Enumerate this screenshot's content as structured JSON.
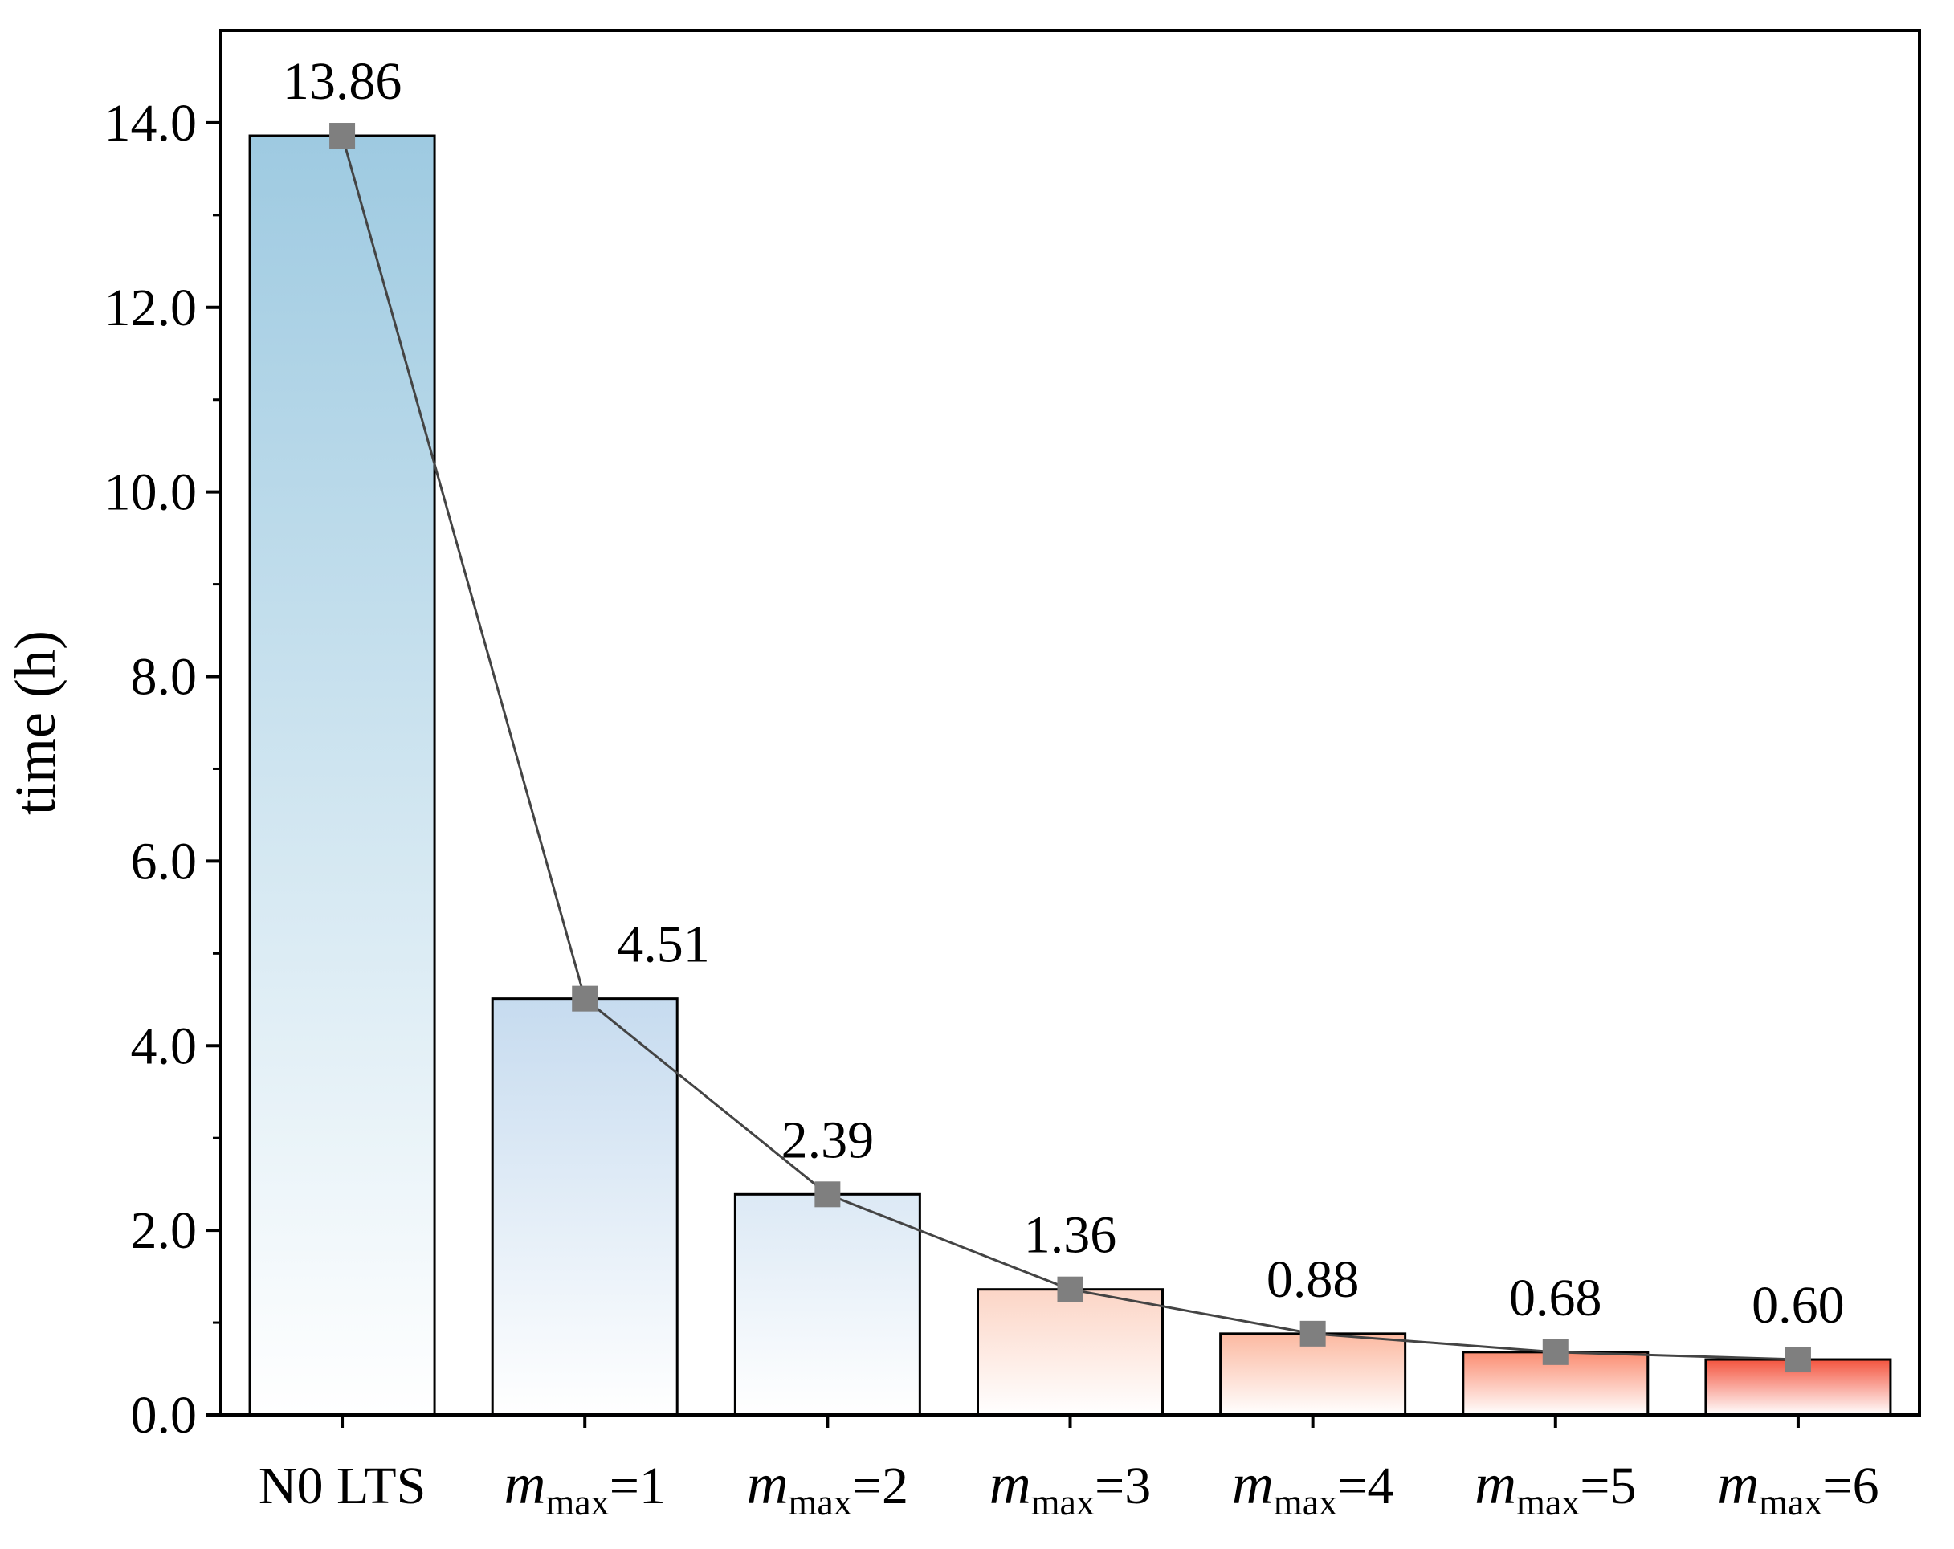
{
  "chart_data": {
    "type": "bar",
    "categories": [
      {
        "label": "N0 LTS"
      },
      {
        "base": "m",
        "sub": "max",
        "suffix": "=1"
      },
      {
        "base": "m",
        "sub": "max",
        "suffix": "=2"
      },
      {
        "base": "m",
        "sub": "max",
        "suffix": "=3"
      },
      {
        "base": "m",
        "sub": "max",
        "suffix": "=4"
      },
      {
        "base": "m",
        "sub": "max",
        "suffix": "=5"
      },
      {
        "base": "m",
        "sub": "max",
        "suffix": "=6"
      }
    ],
    "values": [
      13.86,
      4.51,
      2.39,
      1.36,
      0.88,
      0.68,
      0.6
    ],
    "data_labels": [
      "13.86",
      "4.51",
      "2.39",
      "1.36",
      "0.88",
      "0.68",
      "0.60"
    ],
    "overlay_line": {
      "type": "line",
      "marker": "square",
      "values": [
        13.86,
        4.51,
        2.39,
        1.36,
        0.88,
        0.68,
        0.6
      ]
    },
    "ylabel": "time (h)",
    "xlabel": "",
    "ylim": [
      0,
      15
    ],
    "yticks": [
      0,
      2,
      4,
      6,
      8,
      10,
      12,
      14
    ],
    "ytick_labels": [
      "0.0",
      "2.0",
      "4.0",
      "6.0",
      "8.0",
      "10.0",
      "12.0",
      "14.0"
    ],
    "grid": false,
    "legend": "none",
    "colors": {
      "bar_top": [
        "#9ecae1",
        "#c6dbef",
        "#dce9f5",
        "#fcd5c6",
        "#fcb9a1",
        "#fb8d72",
        "#f4543e"
      ],
      "bar_bottom": "#ffffff",
      "line": "#444444",
      "marker": "#7f7f7f",
      "axis": "#000000"
    }
  }
}
